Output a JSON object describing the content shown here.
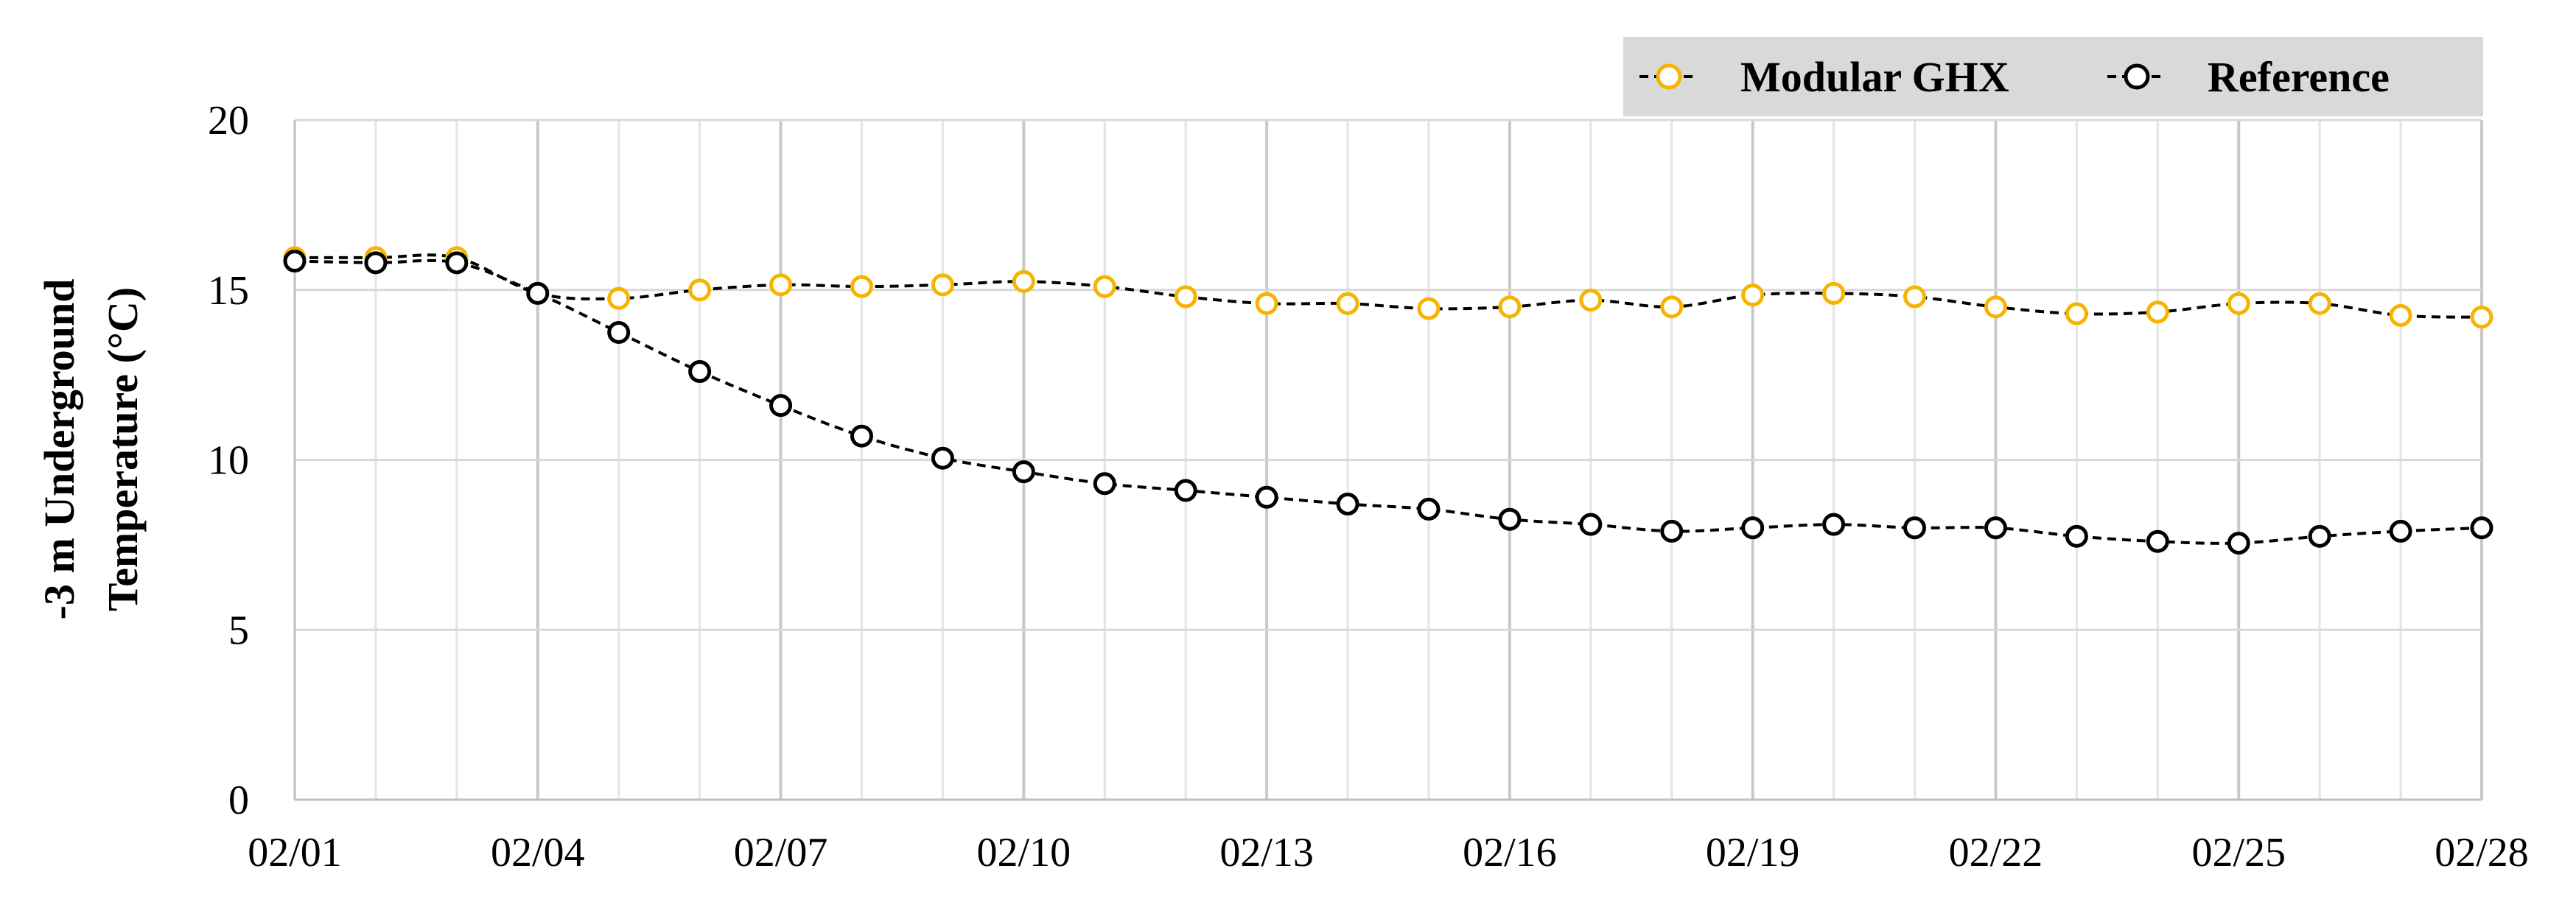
{
  "chart_data": {
    "type": "line",
    "title": "",
    "xlabel": "",
    "ylabel_lines": [
      "-3 m Underground",
      "Temperature (°C)"
    ],
    "ylim": [
      0,
      20
    ],
    "y_ticks": [
      0,
      5,
      10,
      15,
      20
    ],
    "grid": true,
    "legend_position": "top-right",
    "x": [
      "02/01",
      "02/02",
      "02/03",
      "02/04",
      "02/05",
      "02/06",
      "02/07",
      "02/08",
      "02/09",
      "02/10",
      "02/11",
      "02/12",
      "02/13",
      "02/14",
      "02/15",
      "02/16",
      "02/17",
      "02/18",
      "02/19",
      "02/20",
      "02/21",
      "02/22",
      "02/23",
      "02/24",
      "02/25",
      "02/26",
      "02/27",
      "02/28"
    ],
    "x_tick_labels": [
      "02/01",
      "02/04",
      "02/07",
      "02/10",
      "02/13",
      "02/16",
      "02/19",
      "02/22",
      "02/25",
      "02/28"
    ],
    "series": [
      {
        "name": "Modular GHX",
        "color": "#f5b400",
        "line_color": "#000000",
        "values": [
          15.95,
          15.95,
          15.95,
          14.9,
          14.75,
          15.0,
          15.15,
          15.1,
          15.15,
          15.25,
          15.1,
          14.8,
          14.6,
          14.6,
          14.45,
          14.5,
          14.7,
          14.5,
          14.85,
          14.9,
          14.8,
          14.5,
          14.3,
          14.35,
          14.6,
          14.6,
          14.25,
          14.2
        ]
      },
      {
        "name": "Reference",
        "color": "#000000",
        "line_color": "#000000",
        "values": [
          15.85,
          15.8,
          15.8,
          14.9,
          13.75,
          12.6,
          11.6,
          10.7,
          10.05,
          9.65,
          9.3,
          9.1,
          8.9,
          8.7,
          8.55,
          8.25,
          8.1,
          7.9,
          8.0,
          8.1,
          8.0,
          8.0,
          7.75,
          7.6,
          7.55,
          7.75,
          7.9,
          8.0
        ]
      }
    ]
  }
}
